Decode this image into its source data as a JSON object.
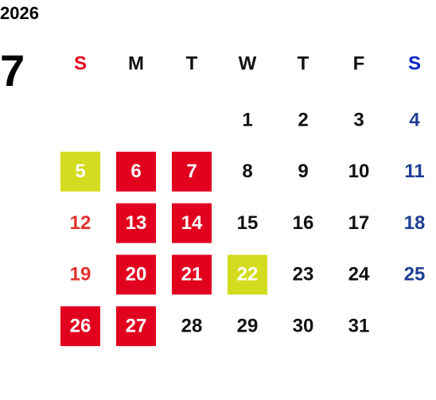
{
  "year": "2026",
  "month": "7",
  "default_color": "#111111",
  "weekdays": [
    {
      "label": "S",
      "color": "#e8001c"
    },
    {
      "label": "M"
    },
    {
      "label": "T"
    },
    {
      "label": "W"
    },
    {
      "label": "T"
    },
    {
      "label": "F"
    },
    {
      "label": "S",
      "color": "#0a26c8"
    }
  ],
  "weeks": [
    [
      null,
      null,
      null,
      {
        "label": "1"
      },
      {
        "label": "2"
      },
      {
        "label": "3"
      },
      {
        "label": "4",
        "color": "#1f3f94"
      }
    ],
    [
      {
        "label": "5",
        "color": "#ffffff",
        "fill": "#d4dc1f"
      },
      {
        "label": "6",
        "color": "#ffffff",
        "fill": "#e2001f"
      },
      {
        "label": "7",
        "color": "#ffffff",
        "fill": "#e2001f"
      },
      {
        "label": "8"
      },
      {
        "label": "9"
      },
      {
        "label": "10"
      },
      {
        "label": "11",
        "color": "#1f3f94"
      }
    ],
    [
      {
        "label": "12",
        "color": "#e2312b"
      },
      {
        "label": "13",
        "color": "#ffffff",
        "fill": "#e2001f"
      },
      {
        "label": "14",
        "color": "#ffffff",
        "fill": "#e2001f"
      },
      {
        "label": "15"
      },
      {
        "label": "16"
      },
      {
        "label": "17"
      },
      {
        "label": "18",
        "color": "#1f3f94"
      }
    ],
    [
      {
        "label": "19",
        "color": "#e2312b"
      },
      {
        "label": "20",
        "color": "#ffffff",
        "fill": "#e2001f"
      },
      {
        "label": "21",
        "color": "#ffffff",
        "fill": "#e2001f"
      },
      {
        "label": "22",
        "color": "#ffffff",
        "fill": "#d4dc1f"
      },
      {
        "label": "23"
      },
      {
        "label": "24"
      },
      {
        "label": "25",
        "color": "#1f3f94"
      }
    ],
    [
      {
        "label": "26",
        "color": "#ffffff",
        "fill": "#e2001f"
      },
      {
        "label": "27",
        "color": "#ffffff",
        "fill": "#e2001f"
      },
      {
        "label": "28"
      },
      {
        "label": "29"
      },
      {
        "label": "30"
      },
      {
        "label": "31"
      },
      null
    ]
  ]
}
